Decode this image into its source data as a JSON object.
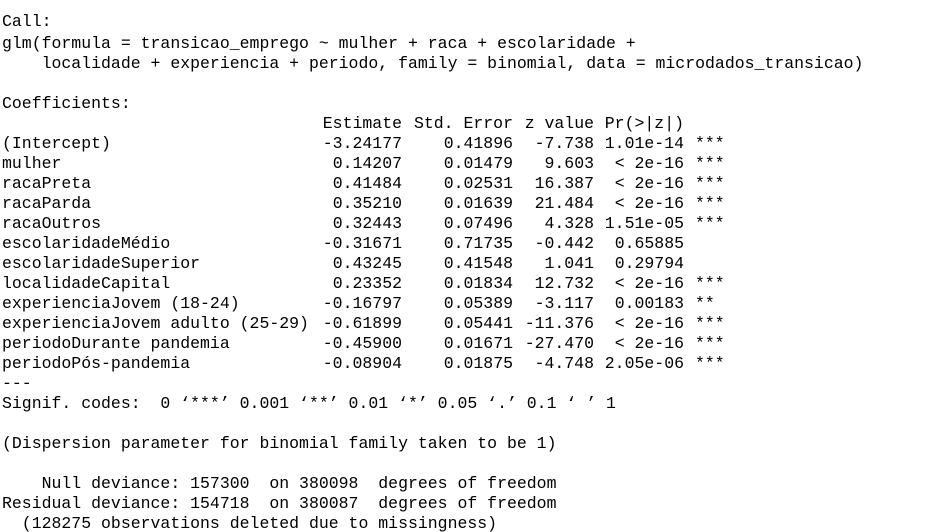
{
  "call": {
    "label": "Call:",
    "lines": [
      "glm(formula = transicao_emprego ~ mulher + raca + escolaridade + ",
      "    localidade + experiencia + periodo, family = binomial, data = microdados_transicao)"
    ]
  },
  "coefficients": {
    "label": "Coefficients:",
    "header": [
      "Estimate",
      "Std. Error",
      "z value",
      "Pr(>|z|)"
    ],
    "rows": [
      {
        "name": "(Intercept)",
        "cells": [
          "-3.24177",
          "0.41896",
          "-7.738",
          "1.01e-14"
        ],
        "signif": "***"
      },
      {
        "name": "mulher",
        "cells": [
          "0.14207",
          "0.01479",
          "9.603",
          "< 2e-16"
        ],
        "signif": "***"
      },
      {
        "name": "racaPreta",
        "cells": [
          "0.41484",
          "0.02531",
          "16.387",
          "< 2e-16"
        ],
        "signif": "***"
      },
      {
        "name": "racaParda",
        "cells": [
          "0.35210",
          "0.01639",
          "21.484",
          "< 2e-16"
        ],
        "signif": "***"
      },
      {
        "name": "racaOutros",
        "cells": [
          "0.32443",
          "0.07496",
          "4.328",
          "1.51e-05"
        ],
        "signif": "***"
      },
      {
        "name": "escolaridadeMédio",
        "cells": [
          "-0.31671",
          "0.71735",
          "-0.442",
          "0.65885"
        ]
      },
      {
        "name": "escolaridadeSuperior",
        "cells": [
          "0.43245",
          "0.41548",
          "1.041",
          "0.29794"
        ]
      },
      {
        "name": "localidadeCapital",
        "cells": [
          "0.23352",
          "0.01834",
          "12.732",
          "< 2e-16"
        ],
        "signif": "***"
      },
      {
        "name": "experienciaJovem (18-24)",
        "cells": [
          "-0.16797",
          "0.05389",
          "-3.117",
          "0.00183"
        ],
        "signif": "**"
      },
      {
        "name": "experienciaJovem adulto (25-29)",
        "cells": [
          "-0.61899",
          "0.05441",
          "-11.376",
          "< 2e-16"
        ],
        "signif": "***"
      },
      {
        "name": "periodoDurante pandemia",
        "cells": [
          "-0.45900",
          "0.01671",
          "-27.470",
          "< 2e-16"
        ],
        "signif": "***"
      },
      {
        "name": "periodoPós-pandemia",
        "cells": [
          "-0.08904",
          "0.01875",
          "-4.748",
          "2.05e-06"
        ],
        "signif": "***"
      }
    ],
    "separator": "---",
    "signif_codes": "Signif. codes:  0 ‘***’ 0.001 ‘**’ 0.01 ‘*’ 0.05 ‘.’ 0.1 ‘ ’ 1"
  },
  "dispersion": "(Dispersion parameter for binomial family taken to be 1)",
  "deviance": [
    "    Null deviance: 157300  on 380098  degrees of freedom",
    "Residual deviance: 154718  on 380087  degrees of freedom",
    "  (128275 observations deleted due to missingness)"
  ]
}
